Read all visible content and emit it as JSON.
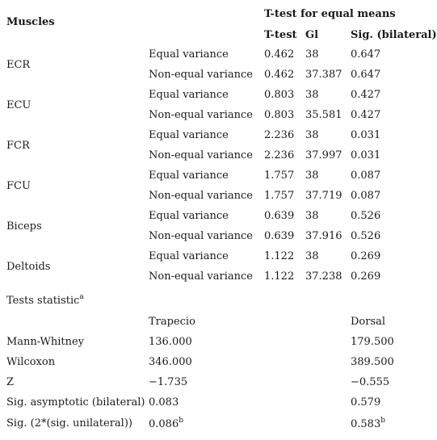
{
  "table1": {
    "header_muscles": "Muscles",
    "header_group": "T-test for equal means",
    "col_t": "T-test",
    "col_gl": "Gl",
    "col_sig": "Sig. (bilateral)",
    "muscles": [
      {
        "name": "ECR",
        "rows": [
          {
            "variance": "Equal variance",
            "t": "0.462",
            "gl": "38",
            "sig": "0.647"
          },
          {
            "variance": "Non-equal variance",
            "t": "0.462",
            "gl": "37.387",
            "sig": "0.647"
          }
        ]
      },
      {
        "name": "ECU",
        "rows": [
          {
            "variance": "Equal variance",
            "t": "0.803",
            "gl": "38",
            "sig": "0.427"
          },
          {
            "variance": "Non-equal variance",
            "t": "0.803",
            "gl": "35.581",
            "sig": "0.427"
          }
        ]
      },
      {
        "name": "FCR",
        "rows": [
          {
            "variance": "Equal variance",
            "t": "2.236",
            "gl": "38",
            "sig": "0.031"
          },
          {
            "variance": "Non-equal variance",
            "t": "2.236",
            "gl": "37.997",
            "sig": "0.031"
          }
        ]
      },
      {
        "name": "FCU",
        "rows": [
          {
            "variance": "Equal variance",
            "t": "1.757",
            "gl": "38",
            "sig": "0.087"
          },
          {
            "variance": "Non-equal variance",
            "t": "1.757",
            "gl": "37.719",
            "sig": "0.087"
          }
        ]
      },
      {
        "name": "Biceps",
        "rows": [
          {
            "variance": "Equal variance",
            "t": "0.639",
            "gl": "38",
            "sig": "0.526"
          },
          {
            "variance": "Non-equal variance",
            "t": "0.639",
            "gl": "37.916",
            "sig": "0.526"
          }
        ]
      },
      {
        "name": "Deltoids",
        "rows": [
          {
            "variance": "Equal variance",
            "t": "1.122",
            "gl": "38",
            "sig": "0.269"
          },
          {
            "variance": "Non-equal variance",
            "t": "1.122",
            "gl": "37.238",
            "sig": "0.269"
          }
        ]
      }
    ]
  },
  "table2": {
    "title": "Tests statistic",
    "title_sup": "a",
    "col_trapecio": "Trapecio",
    "col_dorsal": "Dorsal",
    "rows": [
      {
        "label": "Mann-Whitney",
        "trapecio": "136.000",
        "dorsal": "179.500"
      },
      {
        "label": "Wilcoxon",
        "trapecio": "346.000",
        "dorsal": "389.500"
      },
      {
        "label": "Z",
        "trapecio": "−1.735",
        "dorsal": "−0.555"
      },
      {
        "label": "Sig. asymptotic (bilateral)",
        "trapecio": "0.083",
        "dorsal": "0.579"
      },
      {
        "label": "Sig. (2*(sig. unilateral))",
        "trapecio": "0.086",
        "trapecio_sup": "b",
        "dorsal": "0.583",
        "dorsal_sup": "b"
      }
    ]
  }
}
